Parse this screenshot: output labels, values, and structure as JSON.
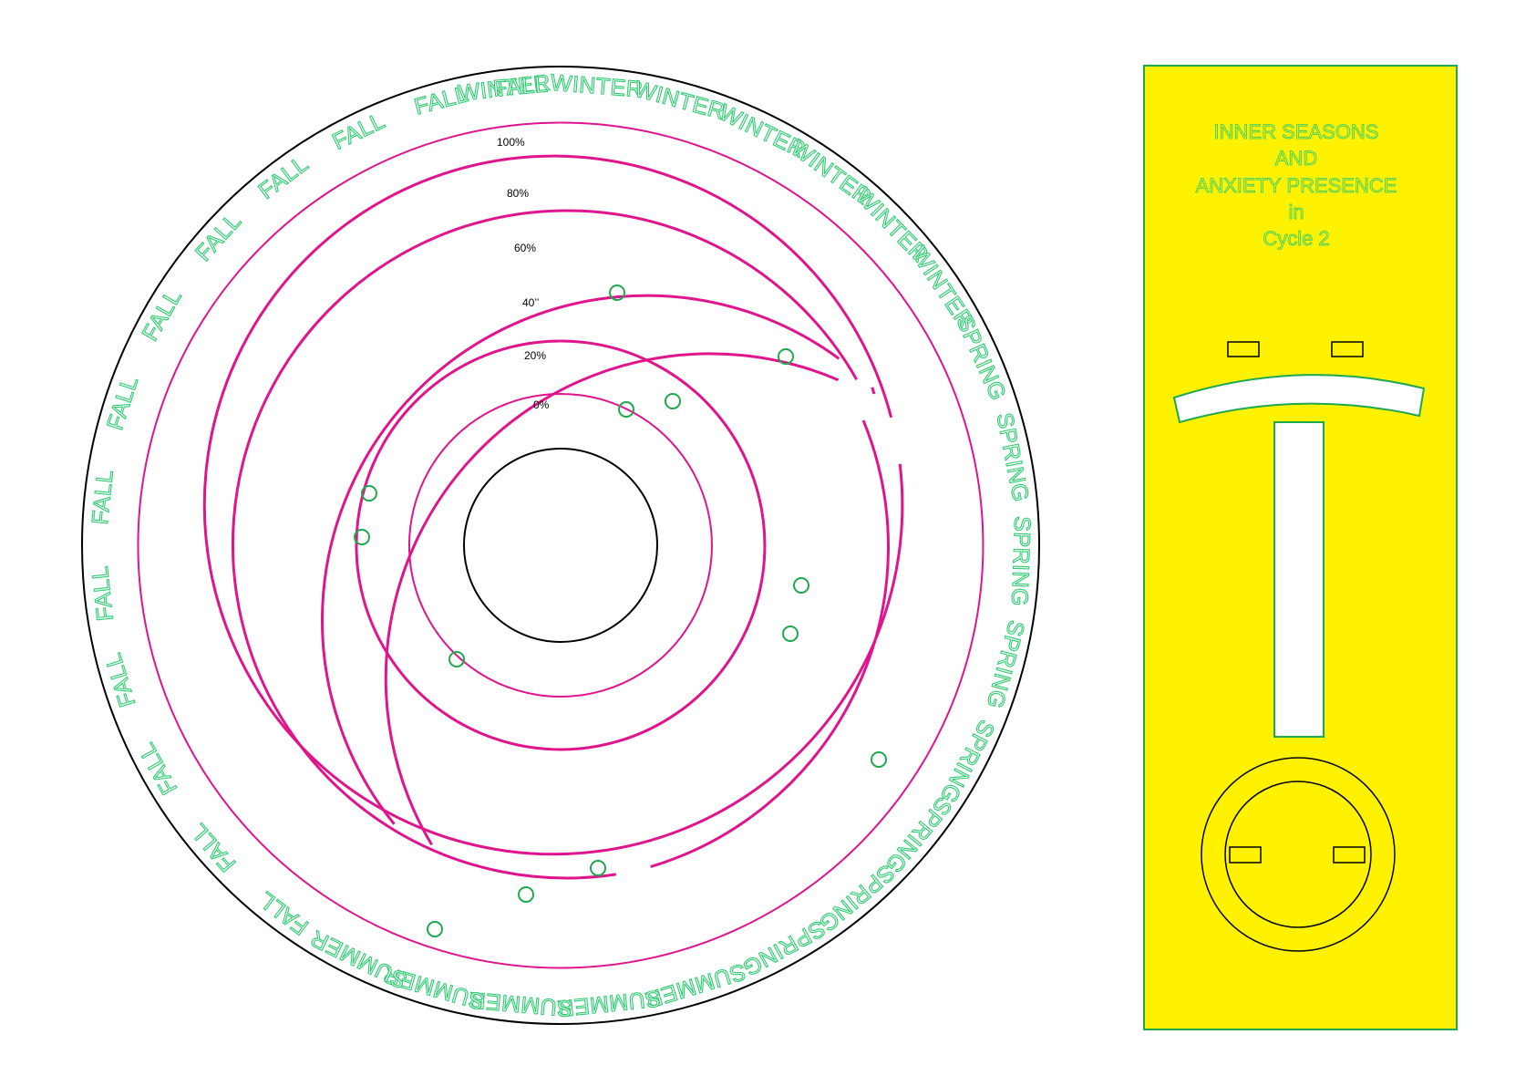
{
  "colors": {
    "ring": "#e0148c",
    "marker": "#1ea84f",
    "outline": "#000000",
    "season_text": "#2ecc71",
    "panel_fill": "#fff200",
    "panel_stroke": "#1ea84f"
  },
  "dial": {
    "season_labels": [
      "WINTER",
      "WINTER",
      "WINTER",
      "WINTER",
      "WINTER",
      "WINTER",
      "WINTER",
      "SPRING",
      "SPRING",
      "SPRING",
      "SPRING",
      "SPRING",
      "SPRING",
      "SPRING",
      "SPRING",
      "SUMMER",
      "SUMMER",
      "SUMMER",
      "SUMMER",
      "SUMMER",
      "FALL",
      "FALL",
      "FALL",
      "FALL",
      "FALL",
      "FALL",
      "FALL",
      "FALL",
      "FALL",
      "FALL",
      "FALL",
      "FALL",
      "FALL"
    ],
    "ring_labels": [
      "100%",
      "80%",
      "60%",
      "40’’",
      "20%",
      "0%"
    ]
  },
  "panel": {
    "title_lines": [
      "INNER SEASONS",
      "AND",
      "ANXIETY PRESENCE",
      "in",
      "Cycle 2"
    ]
  }
}
